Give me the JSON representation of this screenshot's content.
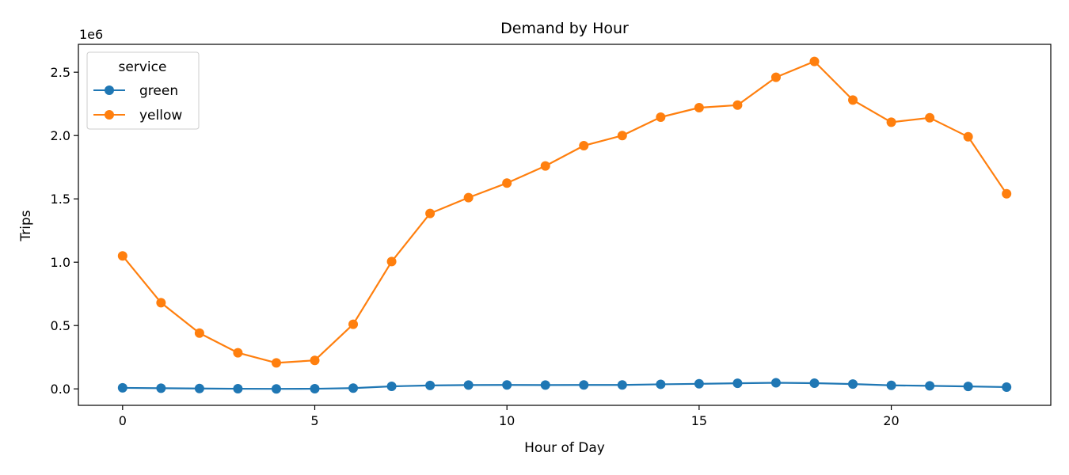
{
  "chart_data": {
    "type": "line",
    "title": "Demand by Hour",
    "xlabel": "Hour of Day",
    "ylabel": "Trips",
    "y_offset_label": "1e6",
    "x": [
      0,
      1,
      2,
      3,
      4,
      5,
      6,
      7,
      8,
      9,
      10,
      11,
      12,
      13,
      14,
      15,
      16,
      17,
      18,
      19,
      20,
      21,
      22,
      23
    ],
    "xlim": [
      -1.15,
      24.15
    ],
    "ylim": [
      -0.13,
      2.72
    ],
    "x_ticks": [
      0,
      5,
      10,
      15,
      20
    ],
    "x_tick_labels": [
      "0",
      "5",
      "10",
      "15",
      "20"
    ],
    "y_ticks": [
      0.0,
      0.5,
      1.0,
      1.5,
      2.0,
      2.5
    ],
    "y_tick_labels": [
      "0.0",
      "0.5",
      "1.0",
      "1.5",
      "2.0",
      "2.5"
    ],
    "grid": false,
    "legend": {
      "title": "service",
      "placement": "top-left"
    },
    "series": [
      {
        "name": "green",
        "color": "#1f77b4",
        "values": [
          0.008,
          0.005,
          0.003,
          0.001,
          0.0,
          0.001,
          0.006,
          0.02,
          0.027,
          0.03,
          0.031,
          0.03,
          0.031,
          0.031,
          0.036,
          0.04,
          0.044,
          0.048,
          0.045,
          0.038,
          0.028,
          0.024,
          0.019,
          0.014
        ]
      },
      {
        "name": "yellow",
        "color": "#ff7f0e",
        "values": [
          1.05,
          0.68,
          0.44,
          0.285,
          0.205,
          0.225,
          0.51,
          1.005,
          1.385,
          1.51,
          1.625,
          1.76,
          1.92,
          2.0,
          2.145,
          2.22,
          2.24,
          2.46,
          2.585,
          2.28,
          2.105,
          2.14,
          1.99,
          1.54
        ]
      }
    ]
  }
}
